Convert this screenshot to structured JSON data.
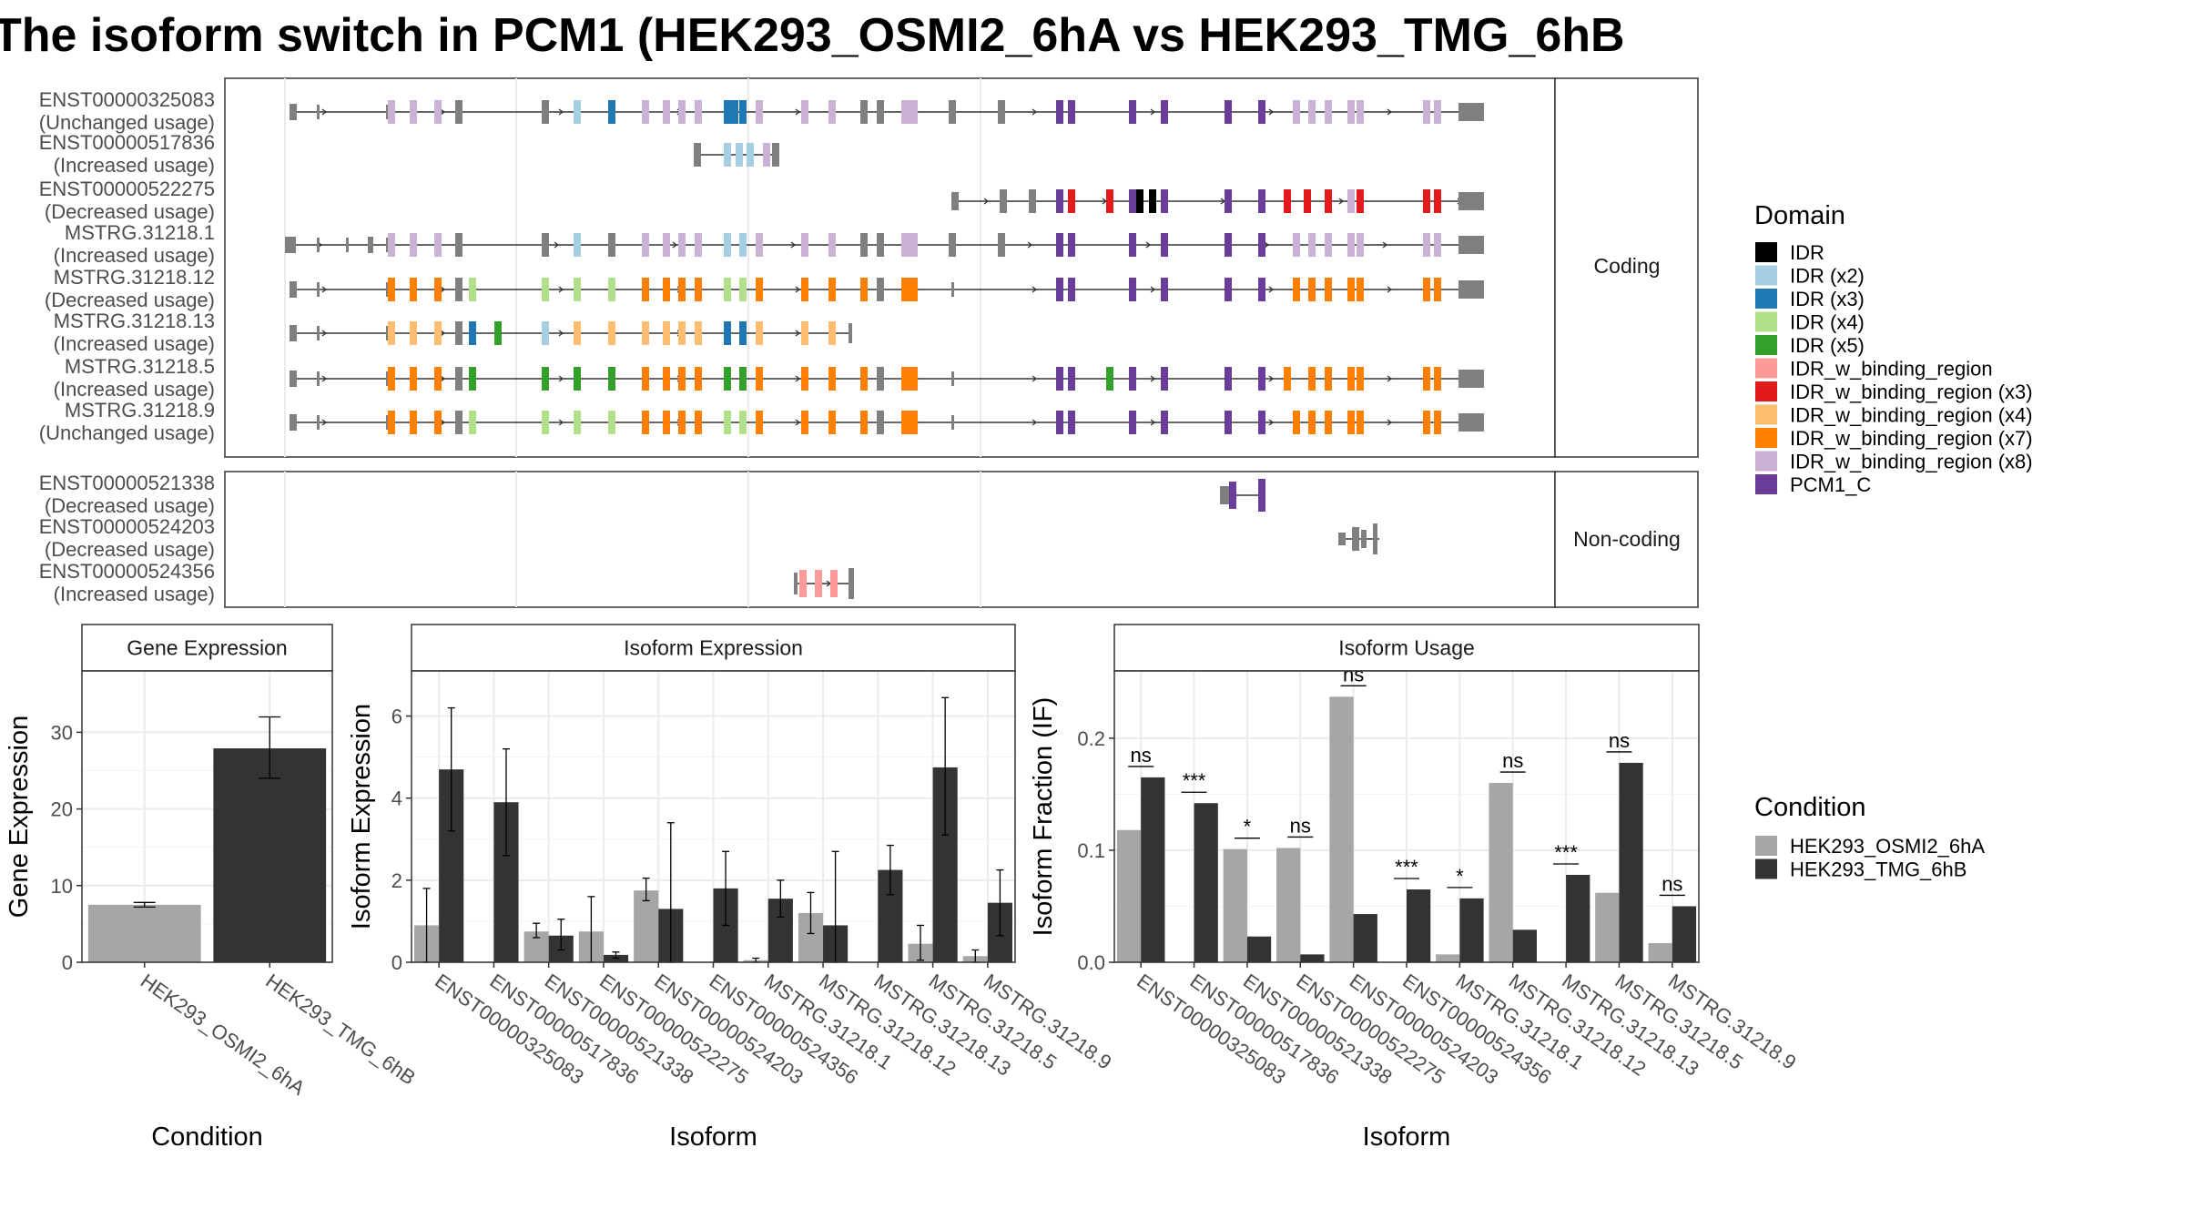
{
  "title": "The isoform switch in PCM1 (HEK293_OSMI2_6hA vs HEK293_TMG_6hB",
  "strips": {
    "coding": "Coding",
    "noncoding": "Non-coding",
    "gene_expression": "Gene Expression",
    "isoform_expression": "Isoform Expression",
    "isoform_usage": "Isoform Usage"
  },
  "legend": {
    "domain_title": "Domain",
    "domains": [
      {
        "label": "IDR",
        "color": "#000000"
      },
      {
        "label": "IDR (x2)",
        "color": "#a6cee3"
      },
      {
        "label": "IDR (x3)",
        "color": "#1f78b4"
      },
      {
        "label": "IDR (x4)",
        "color": "#b2df8a"
      },
      {
        "label": "IDR (x5)",
        "color": "#33a02c"
      },
      {
        "label": "IDR_w_binding_region",
        "color": "#fb9a99"
      },
      {
        "label": "IDR_w_binding_region (x3)",
        "color": "#e31a1c"
      },
      {
        "label": "IDR_w_binding_region (x4)",
        "color": "#fdbf6f"
      },
      {
        "label": "IDR_w_binding_region (x7)",
        "color": "#ff7f00"
      },
      {
        "label": "IDR_w_binding_region (x8)",
        "color": "#cab2d6"
      },
      {
        "label": "PCM1_C",
        "color": "#6a3d9a"
      }
    ],
    "condition_title": "Condition",
    "conditions": [
      {
        "label": "HEK293_OSMI2_6hA",
        "color": "#a6a6a6"
      },
      {
        "label": "HEK293_TMG_6hB",
        "color": "#333333"
      }
    ]
  },
  "transcripts": {
    "coding": [
      {
        "id": "ENST00000325083",
        "usage": "(Unchanged usage)"
      },
      {
        "id": "ENST00000517836",
        "usage": "(Increased usage)"
      },
      {
        "id": "ENST00000522275",
        "usage": "(Decreased usage)"
      },
      {
        "id": "MSTRG.31218.1",
        "usage": "(Increased usage)"
      },
      {
        "id": "MSTRG.31218.12",
        "usage": "(Decreased usage)"
      },
      {
        "id": "MSTRG.31218.13",
        "usage": "(Increased usage)"
      },
      {
        "id": "MSTRG.31218.5",
        "usage": "(Increased usage)"
      },
      {
        "id": "MSTRG.31218.9",
        "usage": "(Unchanged usage)"
      }
    ],
    "noncoding": [
      {
        "id": "ENST00000521338",
        "usage": "(Decreased usage)"
      },
      {
        "id": "ENST00000524203",
        "usage": "(Decreased usage)"
      },
      {
        "id": "ENST00000524356",
        "usage": "(Increased usage)"
      }
    ]
  },
  "chart_data": [
    {
      "type": "bar",
      "title": "Gene Expression",
      "xlabel": "Condition",
      "ylabel": "Gene Expression",
      "ylim": [
        0,
        38
      ],
      "yticks": [
        0,
        10,
        20,
        30
      ],
      "categories": [
        "HEK293_OSMI2_6hA",
        "HEK293_TMG_6hB"
      ],
      "values": [
        7.5,
        27.9
      ],
      "errors": [
        [
          7.2,
          7.8
        ],
        [
          24,
          32
        ]
      ]
    },
    {
      "type": "bar",
      "title": "Isoform Expression",
      "xlabel": "Isoform",
      "ylabel": "Isoform Expression",
      "ylim": [
        0,
        7.1
      ],
      "yticks": [
        0,
        2,
        4,
        6
      ],
      "categories": [
        "ENST00000325083",
        "ENST00000517836",
        "ENST00000521338",
        "ENST00000522275",
        "ENST00000524203",
        "ENST00000524356",
        "MSTRG.31218.1",
        "MSTRG.31218.12",
        "MSTRG.31218.13",
        "MSTRG.31218.5",
        "MSTRG.31218.9"
      ],
      "series": [
        {
          "name": "HEK293_OSMI2_6hA",
          "values": [
            0.9,
            0.0,
            0.75,
            0.75,
            1.75,
            0.0,
            0.05,
            1.2,
            0.0,
            0.45,
            0.15
          ],
          "errors": [
            [
              0,
              1.8
            ],
            [
              0,
              0
            ],
            [
              0.6,
              0.95
            ],
            [
              0,
              1.6
            ],
            [
              1.5,
              2.05
            ],
            [
              0,
              0
            ],
            [
              0,
              0.1
            ],
            [
              0.7,
              1.7
            ],
            [
              0,
              0
            ],
            [
              0.05,
              0.9
            ],
            [
              0,
              0.3
            ]
          ]
        },
        {
          "name": "HEK293_TMG_6hB",
          "values": [
            4.7,
            3.9,
            0.65,
            0.18,
            1.3,
            1.8,
            1.55,
            0.9,
            2.25,
            4.75,
            1.45
          ],
          "errors": [
            [
              3.2,
              6.2
            ],
            [
              2.6,
              5.2
            ],
            [
              0.3,
              1.05
            ],
            [
              0.1,
              0.25
            ],
            [
              0,
              3.4
            ],
            [
              0.9,
              2.7
            ],
            [
              1.1,
              2.0
            ],
            [
              0,
              2.7
            ],
            [
              1.65,
              2.85
            ],
            [
              3.1,
              6.45
            ],
            [
              0.65,
              2.25
            ]
          ]
        }
      ]
    },
    {
      "type": "bar",
      "title": "Isoform Usage",
      "xlabel": "Isoform",
      "ylabel": "Isoform Fraction (IF)",
      "ylim": [
        0,
        0.26
      ],
      "yticks": [
        0.0,
        0.1,
        0.2
      ],
      "ytick_labels": [
        "0.0",
        "0.1",
        "0.2"
      ],
      "categories": [
        "ENST00000325083",
        "ENST00000517836",
        "ENST00000521338",
        "ENST00000522275",
        "ENST00000524203",
        "ENST00000524356",
        "MSTRG.31218.1",
        "MSTRG.31218.12",
        "MSTRG.31218.13",
        "MSTRG.31218.5",
        "MSTRG.31218.9"
      ],
      "series": [
        {
          "name": "HEK293_OSMI2_6hA",
          "values": [
            0.118,
            0.0,
            0.101,
            0.102,
            0.237,
            0.0,
            0.007,
            0.16,
            0.0,
            0.062,
            0.017
          ]
        },
        {
          "name": "HEK293_TMG_6hB",
          "values": [
            0.165,
            0.142,
            0.023,
            0.007,
            0.043,
            0.065,
            0.057,
            0.029,
            0.078,
            0.178,
            0.05
          ]
        }
      ],
      "significance": [
        "ns",
        "***",
        "*",
        "ns",
        "ns",
        "***",
        "*",
        "ns",
        "***",
        "ns",
        "ns"
      ]
    }
  ]
}
